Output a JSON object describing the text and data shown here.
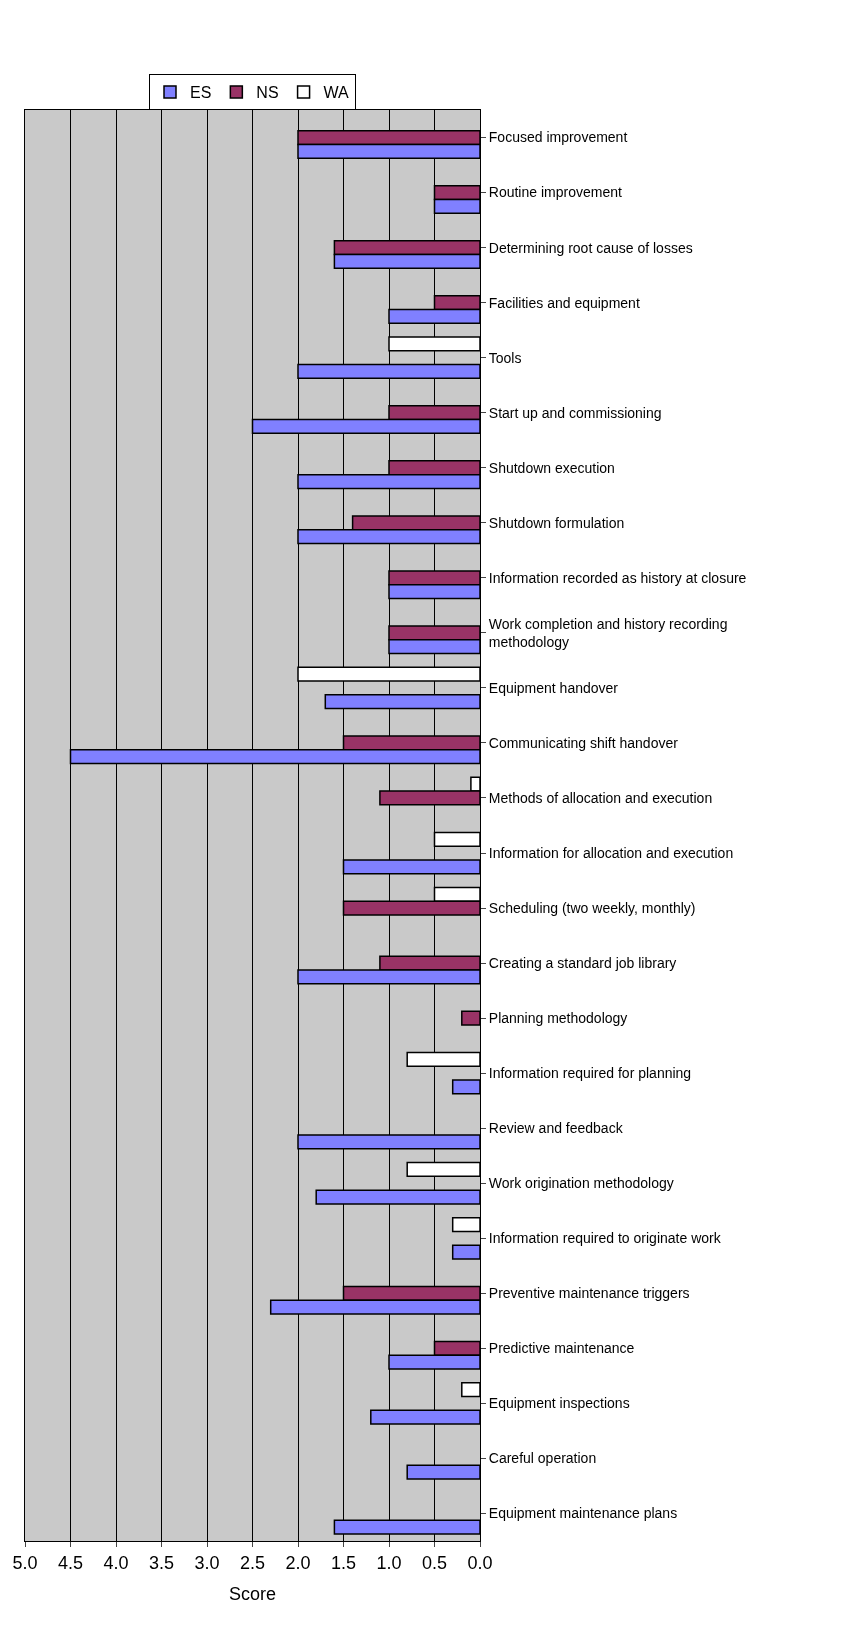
{
  "chart_data": {
    "type": "bar",
    "orientation": "horizontal",
    "xlabel": "Score",
    "categories": [
      "Focused improvement",
      "Routine improvement",
      "Determining root cause of losses",
      "Facilities and equipment",
      "Tools",
      "Start up and commissioning",
      "Shutdown execution",
      "Shutdown formulation",
      "Information recorded as history at closure",
      "Work completion and history recording\nmethodology",
      "Equipment handover",
      "Communicating shift handover",
      "Methods of allocation and execution",
      "Information for allocation and execution",
      "Scheduling (two weekly, monthly)",
      "Creating a standard job library",
      "Planning methodology",
      "Information required for planning",
      "Review and feedback",
      "Work origination methodology",
      "Information required to originate work",
      "Preventive maintenance triggers",
      "Predictive maintenance",
      "Equipment inspections",
      "Careful operation",
      "Equipment maintenance plans"
    ],
    "series": [
      {
        "name": "ES",
        "color": "#8080ff",
        "values": [
          2.0,
          0.5,
          1.6,
          1.0,
          2.0,
          2.5,
          2.0,
          2.0,
          1.0,
          1.0,
          1.7,
          4.5,
          null,
          1.5,
          null,
          2.0,
          null,
          0.3,
          2.0,
          1.8,
          0.3,
          2.3,
          1.0,
          1.2,
          0.8,
          1.6
        ]
      },
      {
        "name": "NS",
        "color": "#993366",
        "values": [
          2.0,
          0.5,
          1.6,
          0.5,
          null,
          1.0,
          1.0,
          1.4,
          1.0,
          1.0,
          null,
          1.5,
          1.1,
          null,
          1.5,
          1.1,
          0.2,
          null,
          null,
          null,
          null,
          1.5,
          0.5,
          null,
          null,
          null
        ]
      },
      {
        "name": "WA",
        "color": "#ffffff",
        "values": [
          null,
          null,
          null,
          null,
          1.0,
          null,
          null,
          null,
          null,
          null,
          2.0,
          null,
          0.1,
          0.5,
          0.5,
          null,
          null,
          0.8,
          null,
          0.8,
          0.3,
          null,
          null,
          0.2,
          null,
          null
        ]
      }
    ],
    "xlim": [
      5.0,
      0.0
    ],
    "xticks": [
      {
        "value": 5.0,
        "label": "5.0"
      },
      {
        "value": 4.5,
        "label": "4.5"
      },
      {
        "value": 4.0,
        "label": "4.0"
      },
      {
        "value": 3.5,
        "label": "3.5"
      },
      {
        "value": 3.0,
        "label": "3.0"
      },
      {
        "value": 2.5,
        "label": "2.5"
      },
      {
        "value": 2.0,
        "label": "2.0"
      },
      {
        "value": 1.5,
        "label": "1.5"
      },
      {
        "value": 1.0,
        "label": "1.0"
      },
      {
        "value": 0.5,
        "label": "0.5"
      },
      {
        "value": 0.0,
        "label": "0.0"
      }
    ],
    "grid": "x",
    "legend": "top"
  }
}
